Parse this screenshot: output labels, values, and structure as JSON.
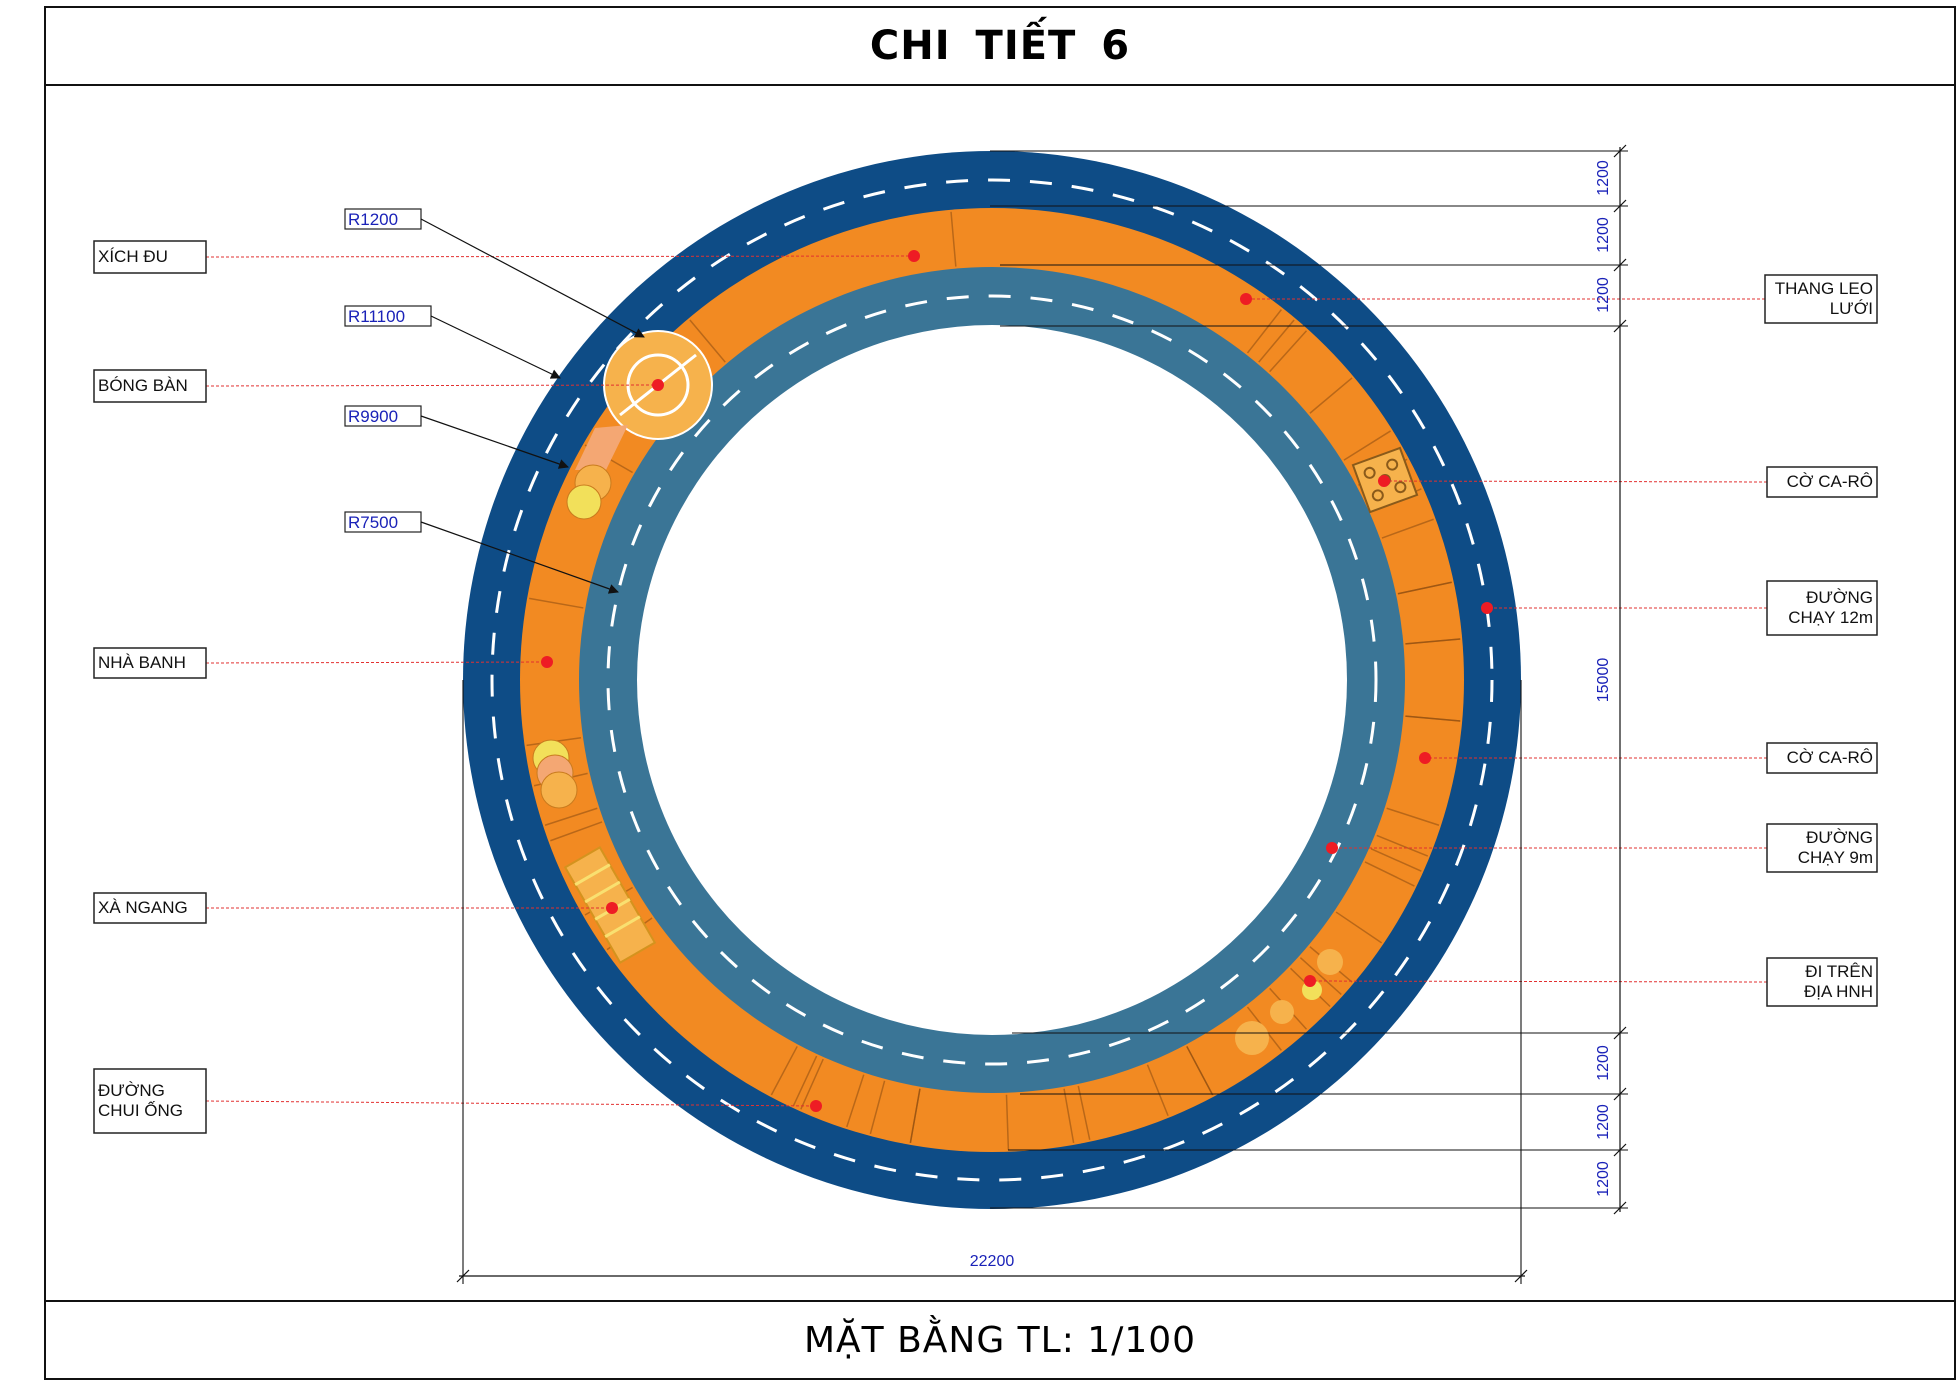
{
  "title": "CHI TIẾT 6",
  "footer": "MẶT BẰNG TL: 1/100",
  "colors": {
    "outer_track": "#0e4c86",
    "orange_band": "#f28a22",
    "inner_track": "#3a7596",
    "lane_marks": "#ffffff",
    "leader": "#e23030",
    "marker": "#ee1c24",
    "dimension_text": "#1a22b8"
  },
  "radius_labels": [
    "R1200",
    "R11100",
    "R9900",
    "R7500"
  ],
  "left_labels": [
    {
      "lines": [
        "XÍCH ĐU"
      ]
    },
    {
      "lines": [
        "BÓNG BÀN"
      ]
    },
    {
      "lines": [
        "NHÀ BANH"
      ]
    },
    {
      "lines": [
        "XÀ NGANG"
      ]
    },
    {
      "lines": [
        "ĐƯỜNG",
        "CHUI ỐNG"
      ]
    }
  ],
  "right_labels": [
    {
      "lines": [
        "THANG LEO",
        "LƯỚI"
      ]
    },
    {
      "lines": [
        "CỜ CA-RÔ"
      ]
    },
    {
      "lines": [
        "ĐƯỜNG",
        "CHẠY 12m"
      ]
    },
    {
      "lines": [
        "CỜ CA-RÔ"
      ]
    },
    {
      "lines": [
        "ĐƯỜNG",
        "CHẠY 9m"
      ]
    },
    {
      "lines": [
        "ĐI TRÊN",
        "ĐỊA HNH"
      ]
    }
  ],
  "dimensions": {
    "right_top": [
      "1200",
      "1200",
      "1200"
    ],
    "right_middle": "15000",
    "right_bottom": [
      "1200",
      "1200",
      "1200"
    ],
    "bottom": "22200"
  }
}
